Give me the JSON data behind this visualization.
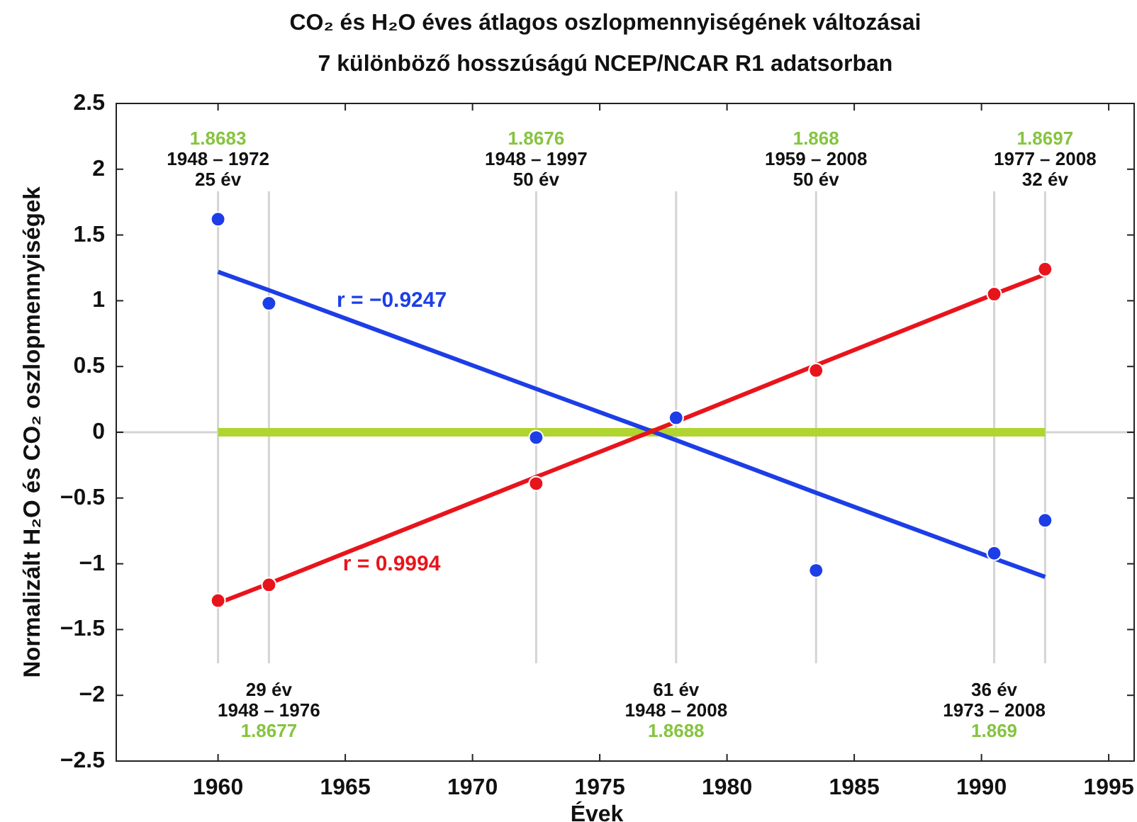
{
  "chart_data": {
    "type": "scatter",
    "title": "CO₂ és H₂O éves átlagos oszlopmennyiségének változásai",
    "subtitle": "7 különböző hosszúságú NCEP/NCAR R1 adatsorban",
    "xlabel": "Évek",
    "ylabel": "Normalizált H₂O és CO₂ oszlopmennyiségek",
    "x": [
      1960,
      1962,
      1972.5,
      1978,
      1983.5,
      1990.5,
      1992.5
    ],
    "xlim": [
      1956,
      1996
    ],
    "xticks": [
      1960,
      1965,
      1970,
      1975,
      1980,
      1985,
      1990,
      1995
    ],
    "ylim": [
      -2.5,
      2.5
    ],
    "yticks": [
      -2.5,
      -2,
      -1.5,
      -1,
      -0.5,
      0,
      0.5,
      1,
      1.5,
      2,
      2.5
    ],
    "series": [
      {
        "type": "line",
        "color": "#b0d430",
        "values": [
          0,
          0,
          0,
          0,
          0,
          0,
          0
        ]
      },
      {
        "type": "line",
        "name": "r = −0.9247",
        "color": "#1d3ee6",
        "values": [
          1.22,
          1.08,
          0.33,
          -0.06,
          -0.46,
          -0.96,
          -1.1
        ]
      },
      {
        "type": "line",
        "name": "r = 0.9994",
        "color": "#e8141c",
        "values": [
          -1.3,
          -1.15,
          -0.34,
          0.08,
          0.51,
          1.05,
          1.2
        ]
      },
      {
        "color": "#1d3ee6",
        "marker": "circle",
        "values": [
          1.62,
          0.98,
          -0.04,
          0.11,
          -1.05,
          -0.92,
          -0.67
        ]
      },
      {
        "color": "#e8141c",
        "marker": "circle",
        "values": [
          -1.28,
          -1.16,
          -0.39,
          null,
          0.47,
          1.05,
          1.24
        ]
      }
    ],
    "ref_lines": [
      {
        "axis": "y",
        "value": 0,
        "color": "#d4d4d4"
      },
      {
        "axis": "x",
        "value": 1960,
        "color": "#d4d4d4"
      },
      {
        "axis": "x",
        "value": 1962,
        "color": "#d4d4d4"
      },
      {
        "axis": "x",
        "value": 1972.5,
        "color": "#d4d4d4"
      },
      {
        "axis": "x",
        "value": 1978,
        "color": "#d4d4d4"
      },
      {
        "axis": "x",
        "value": 1983.5,
        "color": "#d4d4d4"
      },
      {
        "axis": "x",
        "value": 1990.5,
        "color": "#d4d4d4"
      },
      {
        "axis": "x",
        "value": 1992.5,
        "color": "#d4d4d4"
      }
    ],
    "annotations": [
      "1.8683\n1948 – 1972\n25 év",
      "29 év\n1948 – 1976\n1.8677",
      "1.8676\n1948 – 1997\n50 év",
      "61 év\n1948 – 2008\n1.8688",
      "1.868\n1959 – 2008\n50 év",
      "36 év\n1973 – 2008\n1.869",
      "1.8697\n1977 – 2008\n32 év"
    ]
  }
}
